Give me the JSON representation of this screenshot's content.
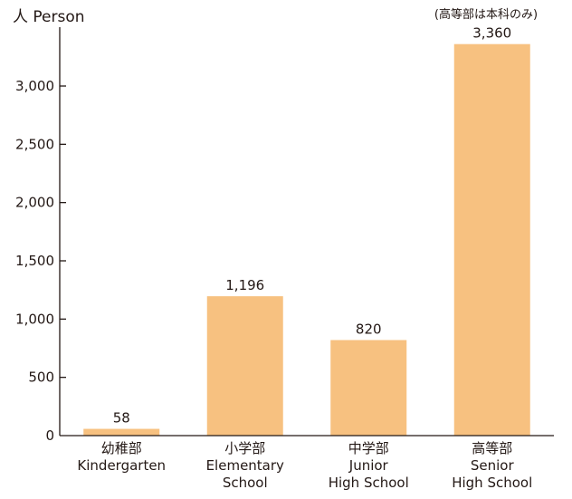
{
  "chart_data": {
    "type": "bar",
    "ylabel": "人 Person",
    "note": "(高等部は本科のみ)",
    "categories": [
      [
        "幼稚部",
        "Kindergarten"
      ],
      [
        "小学部",
        "Elementary",
        "School"
      ],
      [
        "中学部",
        "Junior",
        "High School"
      ],
      [
        "高等部",
        "Senior",
        "High School"
      ]
    ],
    "values": [
      58,
      1196,
      820,
      3360
    ],
    "data_labels": [
      "58",
      "1,196",
      "820",
      "3,360"
    ],
    "yticks": [
      0,
      500,
      1000,
      1500,
      2000,
      2500,
      3000
    ],
    "ytick_labels": [
      "0",
      "500",
      "1,000",
      "1,500",
      "2,000",
      "2,500",
      "3,000"
    ],
    "ylim": [
      0,
      3500
    ],
    "grid": false,
    "legend": "none",
    "bar_color": "#F7C180",
    "axis_color": "#231815"
  }
}
